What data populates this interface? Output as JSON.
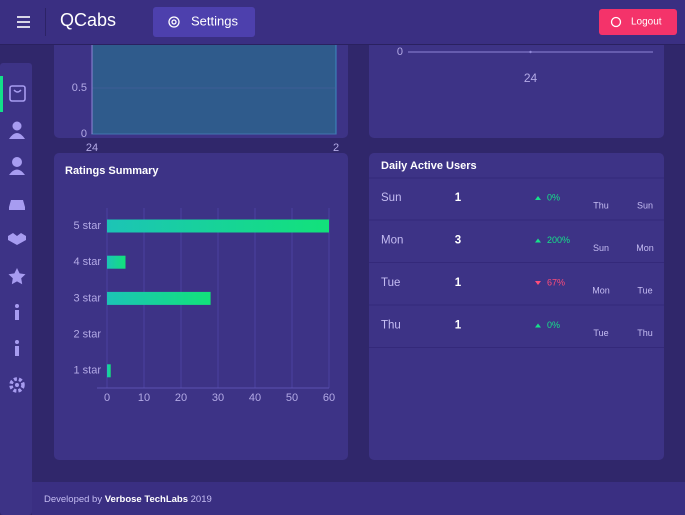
{
  "header": {
    "brand": "QCabs",
    "settings": "Settings",
    "logout": "Logout"
  },
  "chart_data": [
    {
      "type": "area",
      "categories": [
        "24",
        "2"
      ],
      "values": [
        1,
        1
      ],
      "color": "#2f5b8c",
      "ylim": [
        0,
        1
      ],
      "yticks": [
        0,
        0.5
      ],
      "grid": true
    },
    {
      "type": "line",
      "categories": [
        "24"
      ],
      "values": [
        0
      ],
      "color": "#8f86d6",
      "ylim": [
        0,
        1
      ],
      "yticks": [
        0
      ],
      "grid": true
    },
    {
      "type": "hbar",
      "title": "Ratings Summary",
      "categories": [
        "5 star",
        "4 star",
        "3 star",
        "2 star",
        "1 star"
      ],
      "values": [
        60,
        5,
        28,
        0,
        1
      ],
      "colors": [
        "#1cc4b6",
        "#12e27a"
      ],
      "xlim": [
        0,
        60
      ],
      "xticks": [
        0,
        10,
        20,
        30,
        40,
        50,
        60
      ],
      "grid": true
    }
  ],
  "daily_active_users": {
    "title": "Daily Active Users",
    "rows": [
      {
        "day": "Sun",
        "count": 1,
        "change": "0%",
        "trend": "up",
        "from": "Thu",
        "to": "Sun"
      },
      {
        "day": "Mon",
        "count": 3,
        "change": "200%",
        "trend": "up",
        "from": "Sun",
        "to": "Mon"
      },
      {
        "day": "Tue",
        "count": 1,
        "change": "67%",
        "trend": "down",
        "from": "Mon",
        "to": "Tue"
      },
      {
        "day": "Thu",
        "count": 1,
        "change": "0%",
        "trend": "up",
        "from": "Tue",
        "to": "Thu"
      }
    ]
  },
  "footer": {
    "prefix": "Developed by",
    "company": "Verbose TechLabs",
    "year": "2019"
  }
}
